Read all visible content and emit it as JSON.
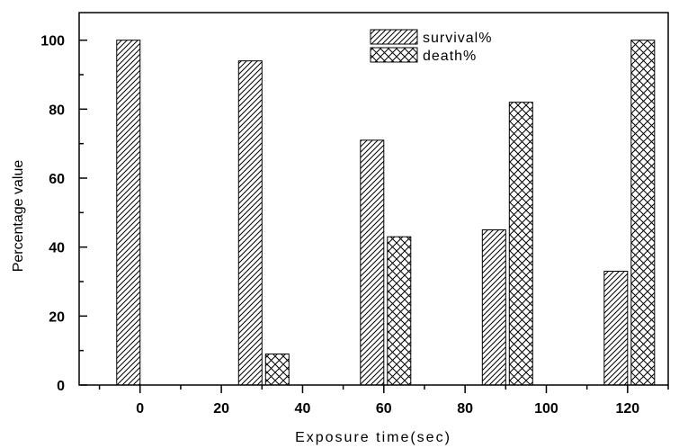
{
  "chart_data": {
    "type": "bar",
    "xlabel": "Exposure time(sec)",
    "ylabel": "Percentage value",
    "xlim": [
      -15,
      130
    ],
    "ylim": [
      0,
      108
    ],
    "x_ticks": [
      0,
      20,
      40,
      60,
      80,
      100,
      120
    ],
    "y_ticks": [
      0,
      20,
      40,
      60,
      80,
      100
    ],
    "grid": false,
    "legend_position": "top-right",
    "series": [
      {
        "name": "survival%",
        "pattern": "diagonal-hatch",
        "x": [
          0,
          30,
          60,
          90,
          120
        ],
        "values": [
          100,
          94,
          71,
          45,
          33
        ]
      },
      {
        "name": "death%",
        "pattern": "crosshatch",
        "x": [
          0,
          30,
          60,
          90,
          120
        ],
        "values": [
          0,
          9,
          43,
          82,
          100
        ]
      }
    ]
  },
  "colors": {
    "stroke": "#000000",
    "background": "#ffffff"
  }
}
